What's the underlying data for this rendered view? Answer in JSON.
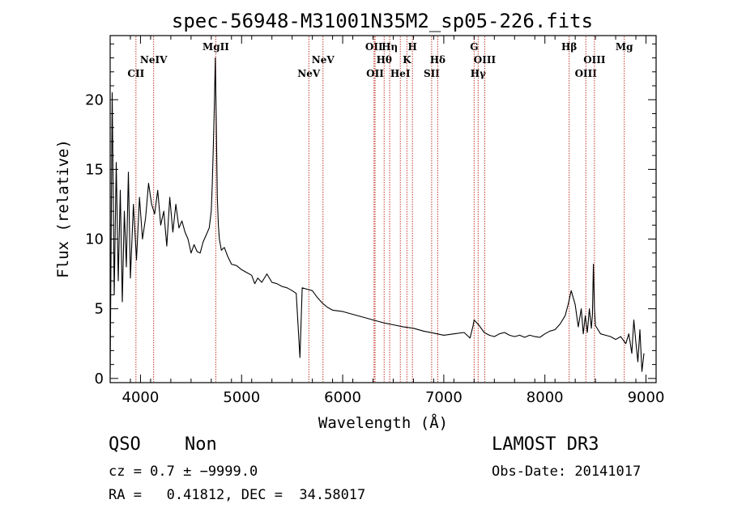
{
  "chart_data": {
    "type": "line",
    "title": "spec-56948-M31001N35M2_sp05-226.fits",
    "xlabel": "Wavelength (Å)",
    "ylabel": "Flux (relative)",
    "xlim": [
      3700,
      9100
    ],
    "ylim": [
      -0.3,
      24.6
    ],
    "xticks": [
      4000,
      5000,
      6000,
      7000,
      8000,
      9000
    ],
    "yticks": [
      0,
      5,
      10,
      15,
      20
    ],
    "series": [
      {
        "name": "flux",
        "x": [
          3700,
          3720,
          3740,
          3760,
          3780,
          3800,
          3820,
          3840,
          3860,
          3880,
          3900,
          3930,
          3960,
          3990,
          4020,
          4050,
          4080,
          4110,
          4140,
          4170,
          4200,
          4230,
          4260,
          4290,
          4320,
          4350,
          4380,
          4410,
          4440,
          4470,
          4500,
          4530,
          4560,
          4590,
          4620,
          4650,
          4680,
          4700,
          4710,
          4720,
          4730,
          4740,
          4750,
          4760,
          4770,
          4780,
          4800,
          4830,
          4860,
          4900,
          4950,
          5000,
          5050,
          5100,
          5130,
          5160,
          5200,
          5250,
          5300,
          5350,
          5400,
          5450,
          5500,
          5540,
          5577,
          5600,
          5650,
          5700,
          5750,
          5800,
          5850,
          5900,
          6000,
          6100,
          6200,
          6300,
          6400,
          6500,
          6600,
          6700,
          6800,
          6900,
          7000,
          7100,
          7200,
          7260,
          7290,
          7300,
          7350,
          7400,
          7450,
          7500,
          7550,
          7600,
          7650,
          7700,
          7750,
          7800,
          7850,
          7900,
          7950,
          8000,
          8050,
          8100,
          8150,
          8200,
          8230,
          8260,
          8300,
          8330,
          8360,
          8380,
          8400,
          8420,
          8440,
          8460,
          8470,
          8480,
          8490,
          8500,
          8550,
          8600,
          8650,
          8700,
          8750,
          8800,
          8830,
          8860,
          8880,
          8900,
          8920,
          8940,
          8960,
          8980
        ],
        "values": [
          0.3,
          20.5,
          6.0,
          15.5,
          7.0,
          13.5,
          5.5,
          12.0,
          8.0,
          14.8,
          7.2,
          12.5,
          8.5,
          13.0,
          10.0,
          11.5,
          14.0,
          12.5,
          11.8,
          13.5,
          11.0,
          12.0,
          9.5,
          13.0,
          10.5,
          12.5,
          10.8,
          11.3,
          10.5,
          10.0,
          9.0,
          9.6,
          9.1,
          9.0,
          9.8,
          10.3,
          10.8,
          12.0,
          14.0,
          16.5,
          19.5,
          23.0,
          18.0,
          13.0,
          11.0,
          10.0,
          9.2,
          9.4,
          8.8,
          8.2,
          8.1,
          7.8,
          7.6,
          7.4,
          6.8,
          7.2,
          6.9,
          7.5,
          6.9,
          6.8,
          6.6,
          6.5,
          6.3,
          6.1,
          1.5,
          6.5,
          6.4,
          6.3,
          5.8,
          5.4,
          5.1,
          4.9,
          4.8,
          4.6,
          4.4,
          4.2,
          4.0,
          3.85,
          3.7,
          3.6,
          3.4,
          3.25,
          3.1,
          3.2,
          3.3,
          2.9,
          3.8,
          4.2,
          3.8,
          3.3,
          3.1,
          3.0,
          3.2,
          3.3,
          3.1,
          3.0,
          3.1,
          2.95,
          3.1,
          3.0,
          2.95,
          3.2,
          3.4,
          3.5,
          3.9,
          4.5,
          5.3,
          6.3,
          5.3,
          3.7,
          5.0,
          3.2,
          4.5,
          3.3,
          5.0,
          3.6,
          4.6,
          8.2,
          5.0,
          3.8,
          3.2,
          3.1,
          3.0,
          2.8,
          3.0,
          2.5,
          3.2,
          1.8,
          4.2,
          2.6,
          1.2,
          3.5,
          0.5,
          1.8
        ]
      }
    ],
    "lines": [
      {
        "name": "CII",
        "x": 3955,
        "row": 3
      },
      {
        "name": "NeIV",
        "x": 4130,
        "row": 2
      },
      {
        "name": "MgII",
        "x": 4745,
        "row": 1
      },
      {
        "name": "NeV",
        "x": 5665,
        "row": 3
      },
      {
        "name": "NeV",
        "x": 5805,
        "row": 2
      },
      {
        "name": "OII",
        "x": 6310,
        "row": 1
      },
      {
        "name": "OII",
        "x": 6320,
        "row": 3
      },
      {
        "name": "Hθ",
        "x": 6410,
        "row": 2
      },
      {
        "name": "Hη",
        "x": 6465,
        "row": 1
      },
      {
        "name": "HeI",
        "x": 6570,
        "row": 3
      },
      {
        "name": "K",
        "x": 6635,
        "row": 2
      },
      {
        "name": "H",
        "x": 6690,
        "row": 1
      },
      {
        "name": "SII",
        "x": 6880,
        "row": 3
      },
      {
        "name": "Hδ",
        "x": 6940,
        "row": 2
      },
      {
        "name": "G",
        "x": 7300,
        "row": 1
      },
      {
        "name": "Hγ",
        "x": 7340,
        "row": 3
      },
      {
        "name": "OIII",
        "x": 7405,
        "row": 2
      },
      {
        "name": "Hβ",
        "x": 8240,
        "row": 1
      },
      {
        "name": "OIII",
        "x": 8405,
        "row": 3
      },
      {
        "name": "OIII",
        "x": 8490,
        "row": 2
      },
      {
        "name": "Mg",
        "x": 8785,
        "row": 1
      }
    ],
    "line_color": "#c0392b"
  },
  "info": {
    "class": "QSO",
    "subclass": "Non",
    "survey": "LAMOST DR3",
    "cz": "cz = 0.7 ± −9999.0",
    "obs_date": "Obs-Date: 20141017",
    "coords": "RA =   0.41812, DEC =  34.58017"
  }
}
